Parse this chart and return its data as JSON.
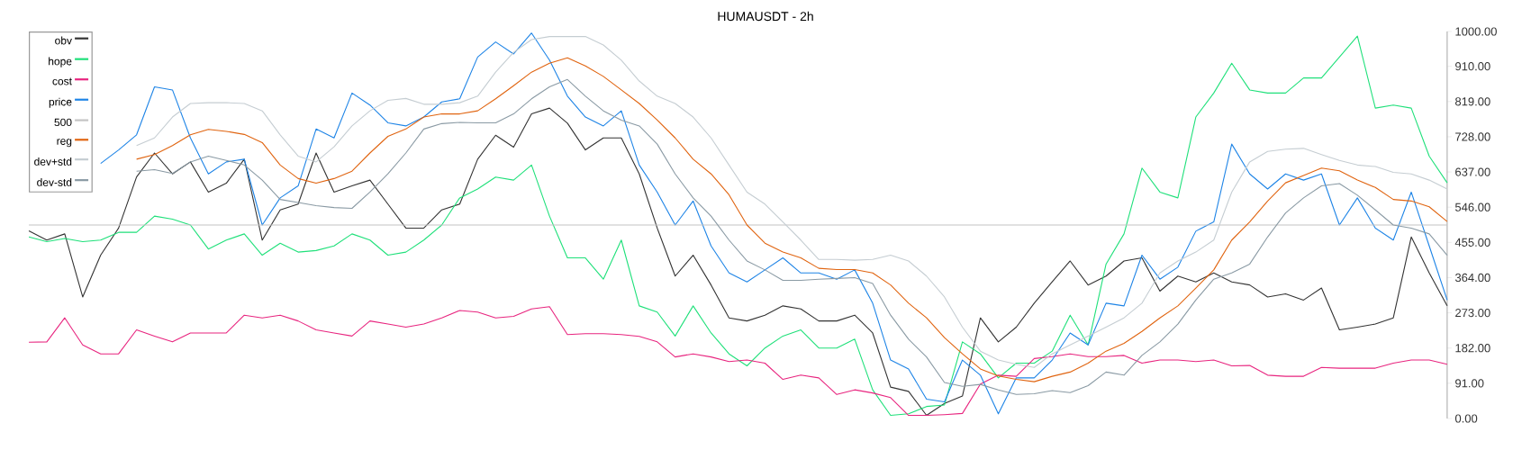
{
  "chart_data": {
    "type": "line",
    "title": "HUMAUSDT - 2h",
    "categories": [
      null,
      null,
      null,
      null,
      null,
      null,
      null,
      null,
      null,
      null,
      null,
      null,
      null,
      null,
      null,
      null,
      null,
      null,
      null,
      null,
      null,
      null,
      null,
      null,
      null,
      null,
      null,
      null,
      null,
      null,
      null,
      null,
      null,
      null,
      null,
      null,
      null,
      null,
      null,
      null,
      null,
      null,
      null,
      null,
      null,
      null,
      null,
      null,
      null,
      null,
      null,
      null,
      null,
      null,
      null,
      null,
      null,
      null,
      null,
      null,
      null,
      null,
      null,
      null,
      null,
      null,
      null,
      null,
      null,
      null,
      null,
      null,
      null,
      null,
      null,
      null,
      null,
      null,
      null,
      null
    ],
    "series": [
      {
        "name": "obv",
        "color": "#333333",
        "values": [
          485,
          461,
          477,
          314,
          422,
          492,
          624,
          686,
          632,
          663,
          585,
          608,
          670,
          461,
          539,
          554,
          686,
          585,
          601,
          616,
          554,
          492,
          492,
          539,
          554,
          670,
          732,
          701,
          787,
          802,
          763,
          694,
          725,
          725,
          632,
          492,
          368,
          422,
          345,
          260,
          252,
          267,
          291,
          283,
          252,
          252,
          267,
          221,
          81,
          70,
          8,
          39,
          58,
          260,
          198,
          236,
          298,
          353,
          407,
          345,
          368,
          407,
          415,
          329,
          368,
          353,
          376,
          353,
          345,
          314,
          322,
          306,
          337,
          229,
          236,
          244,
          260,
          469,
          376,
          291
        ]
      },
      {
        "name": "hope",
        "color": "#1fe07a",
        "values": [
          469,
          457,
          465,
          457,
          461,
          481,
          481,
          523,
          515,
          500,
          438,
          461,
          477,
          422,
          453,
          430,
          434,
          446,
          477,
          461,
          422,
          430,
          461,
          500,
          570,
          593,
          624,
          616,
          655,
          523,
          415,
          415,
          360,
          461,
          291,
          275,
          213,
          291,
          221,
          167,
          136,
          182,
          213,
          229,
          182,
          182,
          205,
          74,
          8,
          12,
          31,
          35,
          198,
          167,
          105,
          143,
          143,
          174,
          267,
          190,
          399,
          477,
          647,
          585,
          570,
          779,
          841,
          918,
          849,
          841,
          841,
          880,
          880,
          934,
          988,
          802,
          810,
          802,
          678,
          609
        ]
      },
      {
        "name": "cost",
        "color": "#e8257f",
        "values": [
          197,
          198,
          260,
          190,
          167,
          167,
          229,
          213,
          198,
          221,
          221,
          221,
          267,
          260,
          267,
          252,
          229,
          221,
          213,
          252,
          244,
          236,
          244,
          260,
          279,
          275,
          260,
          264,
          283,
          289,
          217,
          219,
          219,
          217,
          212,
          198,
          159,
          167,
          159,
          147,
          151,
          143,
          101,
          112,
          105,
          62,
          74,
          66,
          54,
          8,
          8,
          10,
          13,
          89,
          112,
          109,
          155,
          160,
          167,
          160,
          160,
          163,
          143,
          151,
          151,
          147,
          151,
          136,
          137,
          112,
          109,
          109,
          132,
          130,
          130,
          130,
          143,
          151,
          151,
          140
        ]
      },
      {
        "name": "price",
        "color": "#1e84e6",
        "values": [
          null,
          null,
          null,
          null,
          659,
          694,
          733,
          857,
          849,
          725,
          632,
          663,
          670,
          500,
          570,
          601,
          748,
          725,
          841,
          810,
          764,
          756,
          779,
          818,
          826,
          934,
          973,
          942,
          996,
          926,
          833,
          779,
          756,
          795,
          655,
          585,
          500,
          562,
          446,
          376,
          353,
          384,
          415,
          376,
          376,
          360,
          384,
          298,
          151,
          128,
          50,
          43,
          151,
          112,
          12,
          105,
          105,
          151,
          221,
          190,
          298,
          291,
          422,
          360,
          391,
          484,
          508,
          709,
          632,
          593,
          632,
          616,
          632,
          500,
          570,
          492,
          461,
          585,
          446,
          306
        ]
      },
      {
        "name": "500",
        "color": "#c4c4c4",
        "values": [
          500,
          500,
          500,
          500,
          500,
          500,
          500,
          500,
          500,
          500,
          500,
          500,
          500,
          500,
          500,
          500,
          500,
          500,
          500,
          500,
          500,
          500,
          500,
          500,
          500,
          500,
          500,
          500,
          500,
          500,
          500,
          500,
          500,
          500,
          500,
          500,
          500,
          500,
          500,
          500,
          500,
          500,
          500,
          500,
          500,
          500,
          500,
          500,
          500,
          500,
          500,
          500,
          500,
          500,
          500,
          500,
          500,
          500,
          500,
          500,
          500,
          500,
          500,
          500,
          500,
          500,
          500,
          500,
          500,
          500,
          500,
          500,
          500,
          500,
          500,
          500,
          500,
          500,
          500,
          500
        ]
      },
      {
        "name": "reg",
        "color": "#e06410",
        "values": [
          null,
          null,
          null,
          null,
          null,
          null,
          670,
          682,
          705,
          733,
          747,
          742,
          734,
          713,
          655,
          620,
          608,
          620,
          639,
          686,
          729,
          748,
          779,
          787,
          787,
          795,
          826,
          860,
          895,
          918,
          932,
          911,
          884,
          849,
          814,
          771,
          725,
          670,
          632,
          578,
          500,
          453,
          430,
          415,
          388,
          385,
          385,
          376,
          345,
          298,
          260,
          209,
          167,
          128,
          110,
          101,
          95,
          109,
          120,
          143,
          174,
          194,
          225,
          260,
          291,
          337,
          384,
          461,
          508,
          562,
          609,
          628,
          647,
          640,
          616,
          597,
          566,
          562,
          547,
          509
        ]
      },
      {
        "name": "dev+std",
        "color": "#c5cdd2",
        "values": [
          null,
          null,
          null,
          null,
          null,
          null,
          705,
          725,
          779,
          814,
          816,
          816,
          814,
          795,
          733,
          678,
          663,
          702,
          756,
          795,
          822,
          827,
          812,
          812,
          816,
          833,
          895,
          946,
          979,
          987,
          987,
          987,
          965,
          926,
          872,
          833,
          814,
          779,
          725,
          655,
          585,
          554,
          508,
          461,
          411,
          411,
          409,
          411,
          422,
          407,
          368,
          314,
          236,
          174,
          151,
          140,
          132,
          167,
          190,
          213,
          236,
          260,
          298,
          376,
          407,
          430,
          461,
          585,
          663,
          690,
          696,
          698,
          682,
          667,
          655,
          651,
          636,
          632,
          616,
          593
        ]
      },
      {
        "name": "dev-std",
        "color": "#8a9aa4",
        "values": [
          null,
          null,
          null,
          null,
          null,
          null,
          639,
          643,
          633,
          663,
          678,
          667,
          655,
          616,
          566,
          558,
          550,
          545,
          543,
          585,
          632,
          686,
          748,
          762,
          765,
          764,
          764,
          787,
          826,
          857,
          876,
          833,
          795,
          771,
          756,
          709,
          632,
          570,
          523,
          461,
          407,
          384,
          357,
          357,
          360,
          362,
          364,
          349,
          267,
          205,
          159,
          93,
          83,
          88,
          74,
          62,
          64,
          72,
          67,
          85,
          120,
          112,
          163,
          198,
          244,
          306,
          360,
          376,
          399,
          469,
          531,
          570,
          601,
          607,
          577,
          539,
          500,
          492,
          477,
          422
        ]
      }
    ],
    "ylim": [
      0,
      1000
    ],
    "yticks": [
      {
        "value": 0,
        "label": "0.00"
      },
      {
        "value": 91,
        "label": "91.00"
      },
      {
        "value": 182,
        "label": "182.00"
      },
      {
        "value": 273,
        "label": "273.00"
      },
      {
        "value": 364,
        "label": "364.00"
      },
      {
        "value": 455,
        "label": "455.00"
      },
      {
        "value": 546,
        "label": "546.00"
      },
      {
        "value": 637,
        "label": "637.00"
      },
      {
        "value": 728,
        "label": "728.00"
      },
      {
        "value": 819,
        "label": "819.00"
      },
      {
        "value": 910,
        "label": "910.00"
      },
      {
        "value": 1000,
        "label": "1000.00"
      }
    ],
    "tick_labels": "y",
    "legend": "top left",
    "grid": false,
    "marker": "none",
    "line_style": "solid"
  }
}
